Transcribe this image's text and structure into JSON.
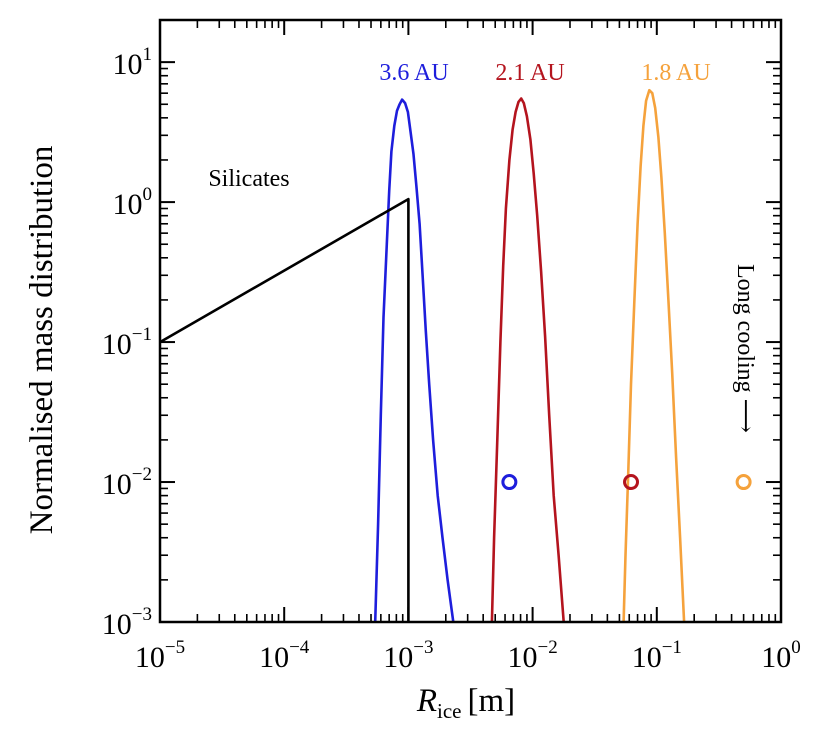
{
  "chart_data": {
    "type": "line",
    "title": "",
    "xlabel": {
      "main": "R",
      "sub": "ice",
      "unit": "[m]"
    },
    "ylabel": "Normalised mass distribution",
    "x_scale": "log",
    "y_scale": "log",
    "xlim": [
      1e-05,
      1
    ],
    "ylim": [
      0.001,
      20
    ],
    "grid": false,
    "legend": "none",
    "x_ticks": [
      {
        "value": 1e-05,
        "base": "10",
        "exp": "−5"
      },
      {
        "value": 0.0001,
        "base": "10",
        "exp": "−4"
      },
      {
        "value": 0.001,
        "base": "10",
        "exp": "−3"
      },
      {
        "value": 0.01,
        "base": "10",
        "exp": "−2"
      },
      {
        "value": 0.1,
        "base": "10",
        "exp": "−1"
      },
      {
        "value": 1,
        "base": "10",
        "exp": "0"
      }
    ],
    "y_ticks": [
      {
        "value": 0.001,
        "base": "10",
        "exp": "−3"
      },
      {
        "value": 0.01,
        "base": "10",
        "exp": "−2"
      },
      {
        "value": 0.1,
        "base": "10",
        "exp": "−1"
      },
      {
        "value": 1,
        "base": "10",
        "exp": "0"
      },
      {
        "value": 10,
        "base": "10",
        "exp": "1"
      }
    ],
    "series": [
      {
        "label": "3.6 AU",
        "color": "#1e1edc",
        "kind": "line",
        "x": [
          0.00054,
          0.00057,
          0.0006,
          0.00063,
          0.00067,
          0.0007,
          0.00073,
          0.00077,
          0.00081,
          0.00085,
          0.00089,
          0.00094,
          0.00099,
          0.00104,
          0.0011,
          0.00116,
          0.00123,
          0.0013,
          0.00138,
          0.00147,
          0.00158,
          0.00172,
          0.00188,
          0.00207,
          0.0023
        ],
        "y": [
          0.001,
          0.005,
          0.03,
          0.15,
          0.5,
          1.2,
          2.3,
          3.5,
          4.5,
          5.0,
          5.4,
          5.1,
          4.4,
          3.2,
          2.2,
          1.3,
          0.7,
          0.3,
          0.12,
          0.05,
          0.02,
          0.008,
          0.004,
          0.002,
          0.001
        ]
      },
      {
        "label": "2.1 AU",
        "color": "#b4141e",
        "kind": "line",
        "x": [
          0.0047,
          0.0049,
          0.0052,
          0.0055,
          0.0058,
          0.0061,
          0.0065,
          0.0069,
          0.0073,
          0.0077,
          0.0081,
          0.0085,
          0.009,
          0.0096,
          0.0102,
          0.0109,
          0.0117,
          0.0126,
          0.0136,
          0.0148,
          0.0162,
          0.0178
        ],
        "y": [
          0.001,
          0.004,
          0.02,
          0.1,
          0.35,
          0.9,
          2.0,
          3.3,
          4.4,
          5.2,
          5.5,
          5.1,
          4.1,
          2.8,
          1.6,
          0.8,
          0.32,
          0.11,
          0.03,
          0.008,
          0.003,
          0.001
        ]
      },
      {
        "label": "1.8 AU",
        "color": "#f5a23c",
        "kind": "line",
        "x": [
          0.054,
          0.056,
          0.059,
          0.062,
          0.066,
          0.07,
          0.074,
          0.078,
          0.082,
          0.087,
          0.092,
          0.097,
          0.103,
          0.109,
          0.116,
          0.124,
          0.133,
          0.143,
          0.154,
          0.166
        ],
        "y": [
          0.001,
          0.003,
          0.012,
          0.05,
          0.2,
          0.7,
          1.8,
          3.5,
          5.3,
          6.3,
          6.0,
          4.7,
          2.9,
          1.5,
          0.6,
          0.2,
          0.06,
          0.015,
          0.004,
          0.001
        ]
      },
      {
        "label": "Silicates",
        "color": "#000000",
        "kind": "line",
        "x": [
          1e-05,
          0.001,
          0.001
        ],
        "y": [
          0.1,
          1.05,
          0.001
        ]
      }
    ],
    "markers": [
      {
        "x": 0.0065,
        "y": 0.01,
        "color": "#1e1edc"
      },
      {
        "x": 0.062,
        "y": 0.01,
        "color": "#b4141e"
      },
      {
        "x": 0.5,
        "y": 0.01,
        "color": "#f5a23c"
      }
    ],
    "annotations": {
      "series_labels": [
        "3.6 AU",
        "2.1 AU",
        "1.8 AU"
      ],
      "silicates": "Silicates",
      "long_cooling": "Long cooling ⟶"
    }
  }
}
